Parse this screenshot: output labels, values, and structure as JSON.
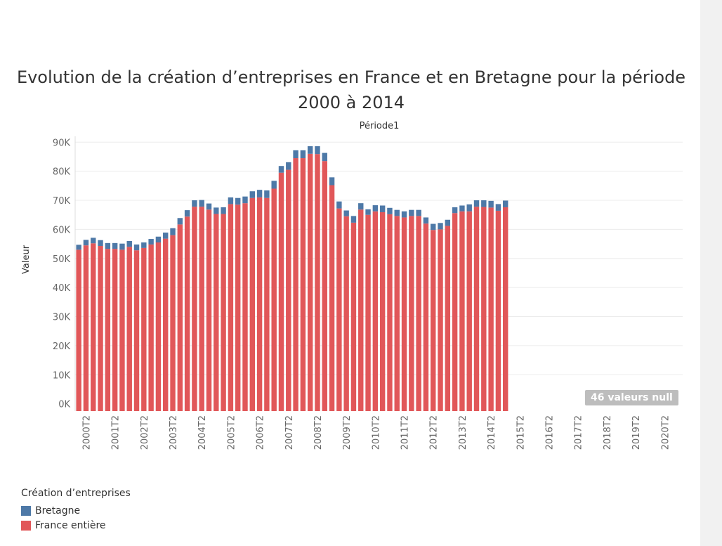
{
  "title": "Evolution de la création d’entreprises en France et en Bretagne pour la période 2000 à 2014",
  "null_badge": "46 valeurs null",
  "legend": {
    "title": "Création d’entreprises",
    "items": [
      {
        "label": "Bretagne",
        "color": "#4e79a7"
      },
      {
        "label": "France entière",
        "color": "#e15759"
      }
    ]
  },
  "chart_data": {
    "type": "bar",
    "stacked": true,
    "title": "Evolution de la création d’entreprises en France et en Bretagne pour la période 2000 à 2014",
    "column_header": "Période1",
    "xlabel": "",
    "ylabel": "Valeur",
    "ylim": [
      -2500,
      92000
    ],
    "yticks": [
      0,
      10000,
      20000,
      30000,
      40000,
      50000,
      60000,
      70000,
      80000,
      90000
    ],
    "ytick_labels": [
      "0K",
      "10K",
      "20K",
      "30K",
      "40K",
      "50K",
      "60K",
      "70K",
      "80K",
      "90K"
    ],
    "grid": true,
    "legend_position": "bottom-left",
    "x_tick_labels": [
      "2000T2",
      "2001T2",
      "2002T2",
      "2003T2",
      "2004T2",
      "2005T2",
      "2006T2",
      "2007T2",
      "2008T2",
      "2009T2",
      "2010T2",
      "2011T2",
      "2012T2",
      "2013T2",
      "2014T2",
      "2015T2",
      "2016T2",
      "2017T2",
      "2018T2",
      "2019T2",
      "2020T2"
    ],
    "categories": [
      "2000T1",
      "2000T2",
      "2000T3",
      "2000T4",
      "2001T1",
      "2001T2",
      "2001T3",
      "2001T4",
      "2002T1",
      "2002T2",
      "2002T3",
      "2002T4",
      "2003T1",
      "2003T2",
      "2003T3",
      "2003T4",
      "2004T1",
      "2004T2",
      "2004T3",
      "2004T4",
      "2005T1",
      "2005T2",
      "2005T3",
      "2005T4",
      "2006T1",
      "2006T2",
      "2006T3",
      "2006T4",
      "2007T1",
      "2007T2",
      "2007T3",
      "2007T4",
      "2008T1",
      "2008T2",
      "2008T3",
      "2008T4",
      "2009T1",
      "2009T2",
      "2009T3",
      "2009T4",
      "2010T1",
      "2010T2",
      "2010T3",
      "2010T4",
      "2011T1",
      "2011T2",
      "2011T3",
      "2011T4",
      "2012T1",
      "2012T2",
      "2012T3",
      "2012T4",
      "2013T1",
      "2013T2",
      "2013T3",
      "2013T4",
      "2014T1",
      "2014T2",
      "2014T3",
      "2014T4"
    ],
    "series": [
      {
        "name": "France entière",
        "color": "#e15759",
        "values": [
          53000,
          54500,
          55200,
          54300,
          53300,
          53300,
          53000,
          54000,
          52800,
          53600,
          54800,
          55500,
          56800,
          58000,
          61700,
          64400,
          67800,
          67800,
          66800,
          65300,
          65300,
          68700,
          68500,
          69000,
          70800,
          71000,
          70800,
          74000,
          79500,
          80500,
          84500,
          84500,
          86000,
          85900,
          83500,
          75200,
          67200,
          64500,
          62300,
          66800,
          65000,
          66200,
          65900,
          65200,
          64600,
          64100,
          64600,
          64600,
          62000,
          59800,
          60000,
          61200,
          65600,
          66200,
          66200,
          67800,
          67700,
          67500,
          66400,
          67600
        ]
      },
      {
        "name": "Bretagne",
        "color": "#4e79a7",
        "values": [
          1700,
          1900,
          1900,
          2000,
          2000,
          2000,
          2100,
          2000,
          2000,
          1900,
          1900,
          2000,
          2100,
          2400,
          2200,
          2200,
          2200,
          2300,
          2100,
          2200,
          2300,
          2300,
          2300,
          2300,
          2300,
          2600,
          2600,
          2700,
          2300,
          2600,
          2700,
          2700,
          2600,
          2700,
          2800,
          2700,
          2400,
          2000,
          2300,
          2200,
          1900,
          2100,
          2300,
          2200,
          2100,
          2100,
          2100,
          2100,
          2100,
          2100,
          2200,
          2100,
          2000,
          2000,
          2400,
          2200,
          2300,
          2300,
          2300,
          2300
        ]
      }
    ]
  }
}
